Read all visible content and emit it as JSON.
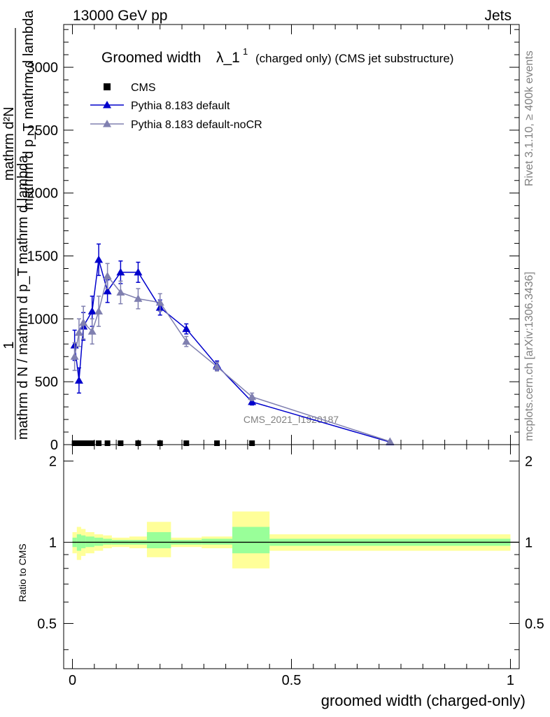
{
  "header": {
    "left": "13000 GeV pp",
    "right": "Jets"
  },
  "side": {
    "rivet": "Rivet 3.1.10, ≥ 400k events",
    "mcplots": "mcplots.cern.ch [arXiv:1306.3436]"
  },
  "watermark": "CMS_2021_I1920187",
  "chart_data": [
    {
      "type": "line",
      "title": {
        "main": "Groomed width",
        "lambda": "λ_1",
        "sup": "1",
        "sub": "(charged only) (CMS jet substructure)"
      },
      "ylabel": {
        "left_denominator": "mathrm d N / mathrm d p_T mathrm d lambda",
        "left_numerator": "1",
        "right_numerator": "mathrm d²N",
        "right_denominator": "mathrm d p_T mathrm d lambda"
      },
      "xlim": [
        -0.02,
        1.02
      ],
      "ylim": [
        0,
        3340
      ],
      "yticks": [
        0,
        500,
        1000,
        1500,
        2000,
        2500,
        3000
      ],
      "ytick_labels": [
        "0",
        "500",
        "1000",
        "1500",
        "2000",
        "2500",
        "3000"
      ],
      "legend_position": "top-left",
      "series": [
        {
          "name": "CMS",
          "color": "#000000",
          "marker": "square",
          "points": [
            {
              "x": 0.005,
              "y": 0
            },
            {
              "x": 0.015,
              "y": 0
            },
            {
              "x": 0.025,
              "y": 0
            },
            {
              "x": 0.035,
              "y": 0
            },
            {
              "x": 0.045,
              "y": 0
            },
            {
              "x": 0.06,
              "y": 0
            },
            {
              "x": 0.08,
              "y": 0
            },
            {
              "x": 0.11,
              "y": 0
            },
            {
              "x": 0.15,
              "y": 0
            },
            {
              "x": 0.2,
              "y": 0
            },
            {
              "x": 0.26,
              "y": 0
            },
            {
              "x": 0.33,
              "y": 0
            },
            {
              "x": 0.41,
              "y": 0
            }
          ]
        },
        {
          "name": "Pythia 8.183 default",
          "color": "#0000cc",
          "marker": "triangle",
          "points": [
            {
              "x": 0.005,
              "y": 790,
              "err": 120
            },
            {
              "x": 0.015,
              "y": 510,
              "err": 100
            },
            {
              "x": 0.025,
              "y": 940,
              "err": 110
            },
            {
              "x": 0.045,
              "y": 1060,
              "err": 120
            },
            {
              "x": 0.06,
              "y": 1470,
              "err": 125
            },
            {
              "x": 0.08,
              "y": 1220,
              "err": 90
            },
            {
              "x": 0.11,
              "y": 1370,
              "err": 90
            },
            {
              "x": 0.15,
              "y": 1370,
              "err": 80
            },
            {
              "x": 0.2,
              "y": 1090,
              "err": 60
            },
            {
              "x": 0.26,
              "y": 920,
              "err": 40
            },
            {
              "x": 0.33,
              "y": 630,
              "err": 35
            },
            {
              "x": 0.41,
              "y": 340,
              "err": 25
            },
            {
              "x": 0.725,
              "y": 20,
              "err": 5
            }
          ]
        },
        {
          "name": "Pythia 8.183 default-noCR",
          "color": "#8080b0",
          "marker": "triangle",
          "points": [
            {
              "x": 0.005,
              "y": 700,
              "err": 110
            },
            {
              "x": 0.015,
              "y": 890,
              "err": 110
            },
            {
              "x": 0.025,
              "y": 970,
              "err": 130
            },
            {
              "x": 0.045,
              "y": 900,
              "err": 100
            },
            {
              "x": 0.06,
              "y": 1060,
              "err": 120
            },
            {
              "x": 0.08,
              "y": 1340,
              "err": 100
            },
            {
              "x": 0.11,
              "y": 1210,
              "err": 90
            },
            {
              "x": 0.15,
              "y": 1160,
              "err": 80
            },
            {
              "x": 0.2,
              "y": 1130,
              "err": 70
            },
            {
              "x": 0.26,
              "y": 820,
              "err": 40
            },
            {
              "x": 0.33,
              "y": 620,
              "err": 35
            },
            {
              "x": 0.41,
              "y": 380,
              "err": 30
            },
            {
              "x": 0.725,
              "y": 25,
              "err": 5
            }
          ]
        }
      ]
    },
    {
      "type": "area",
      "ylabel": "Ratio to CMS",
      "xlabel": "groomed width (charged-only)",
      "xlim": [
        -0.02,
        1.02
      ],
      "ylim": [
        0.34,
        2.3
      ],
      "yticks": [
        0.5,
        1,
        2
      ],
      "ytick_labels": [
        "0.5",
        "1",
        "2"
      ],
      "xticks": [
        0,
        0.5,
        1
      ],
      "xtick_labels": [
        "0",
        "0.5",
        "1"
      ],
      "reference_line": 1,
      "bands": [
        {
          "x0": 0.0,
          "x1": 0.01,
          "yellow": [
            0.91,
            1.09
          ],
          "green": [
            0.96,
            1.04
          ]
        },
        {
          "x0": 0.01,
          "x1": 0.02,
          "yellow": [
            0.86,
            1.14
          ],
          "green": [
            0.93,
            1.07
          ]
        },
        {
          "x0": 0.02,
          "x1": 0.03,
          "yellow": [
            0.89,
            1.12
          ],
          "green": [
            0.95,
            1.06
          ]
        },
        {
          "x0": 0.03,
          "x1": 0.05,
          "yellow": [
            0.91,
            1.09
          ],
          "green": [
            0.96,
            1.05
          ]
        },
        {
          "x0": 0.05,
          "x1": 0.07,
          "yellow": [
            0.93,
            1.07
          ],
          "green": [
            0.97,
            1.04
          ]
        },
        {
          "x0": 0.07,
          "x1": 0.09,
          "yellow": [
            0.95,
            1.06
          ],
          "green": [
            0.98,
            1.03
          ]
        },
        {
          "x0": 0.09,
          "x1": 0.13,
          "yellow": [
            0.96,
            1.04
          ],
          "green": [
            0.98,
            1.02
          ]
        },
        {
          "x0": 0.13,
          "x1": 0.17,
          "yellow": [
            0.95,
            1.05
          ],
          "green": [
            0.98,
            1.02
          ]
        },
        {
          "x0": 0.17,
          "x1": 0.225,
          "yellow": [
            0.88,
            1.19
          ],
          "green": [
            0.95,
            1.09
          ]
        },
        {
          "x0": 0.225,
          "x1": 0.295,
          "yellow": [
            0.96,
            1.04
          ],
          "green": [
            0.98,
            1.02
          ]
        },
        {
          "x0": 0.295,
          "x1": 0.365,
          "yellow": [
            0.95,
            1.05
          ],
          "green": [
            0.98,
            1.03
          ]
        },
        {
          "x0": 0.365,
          "x1": 0.45,
          "yellow": [
            0.8,
            1.3
          ],
          "green": [
            0.91,
            1.14
          ]
        },
        {
          "x0": 0.45,
          "x1": 1.0,
          "yellow": [
            0.93,
            1.07
          ],
          "green": [
            0.97,
            1.03
          ]
        }
      ],
      "colors": {
        "yellow": "#ffff99",
        "green": "#99ff99"
      }
    }
  ]
}
